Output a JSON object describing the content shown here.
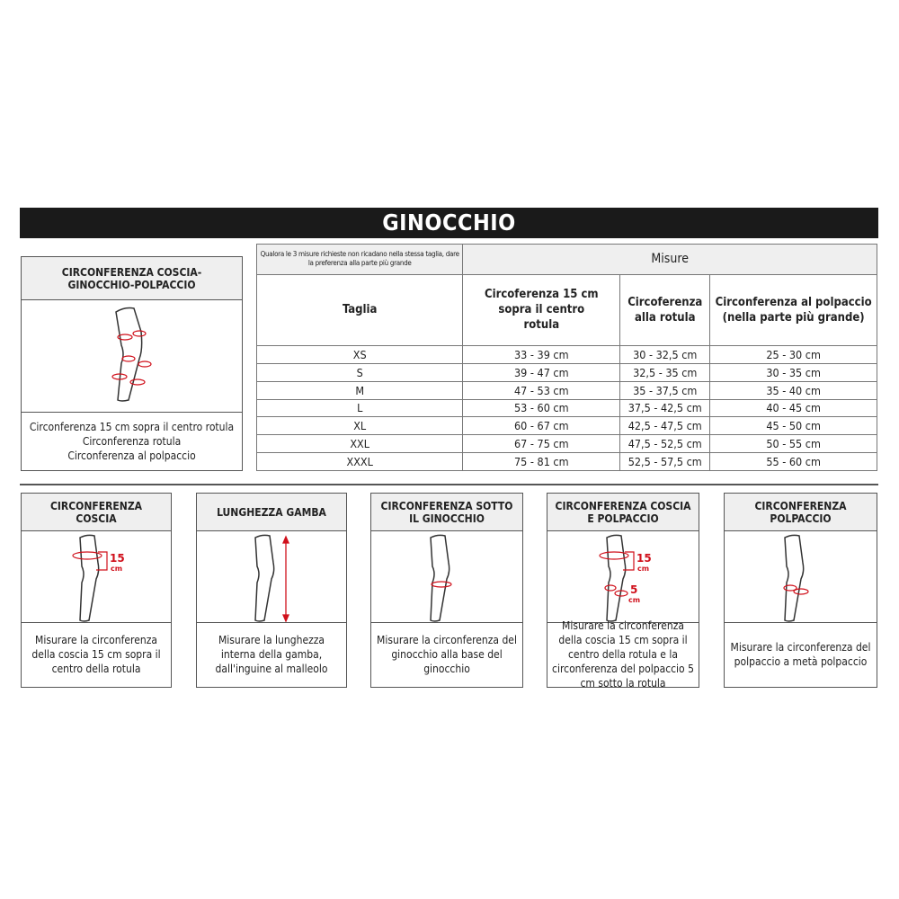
{
  "title": "GINOCCHIO",
  "overview_box": {
    "header": "CIRCONFERENZA COSCIA-GINOCCHIO-POLPACCIO",
    "lines": [
      "Circonferenza 15 cm sopra il centro rotula",
      "Circonferenza rotula",
      "Circonferenza al polpaccio"
    ]
  },
  "table": {
    "note": "Qualora le 3 misure richieste non ricadano nella stessa taglia, dare la preferenza alla parte più grande",
    "group_header": "Misure",
    "headers": [
      "Taglia",
      "Circoferenza 15 cm sopra il centro rotula",
      "Circoferenza alla rotula",
      "Circonferenza al polpaccio (nella parte più grande)"
    ],
    "rows": [
      [
        "XS",
        "33 - 39 cm",
        "30 - 32,5 cm",
        "25 - 30 cm"
      ],
      [
        "S",
        "39 - 47 cm",
        "32,5 - 35 cm",
        "30 - 35 cm"
      ],
      [
        "M",
        "47 - 53 cm",
        "35 - 37,5 cm",
        "35 - 40 cm"
      ],
      [
        "L",
        "53 - 60 cm",
        "37,5 - 42,5 cm",
        "40 - 45 cm"
      ],
      [
        "XL",
        "60 - 67 cm",
        "42,5 - 47,5 cm",
        "45 - 50 cm"
      ],
      [
        "XXL",
        "67 - 75 cm",
        "47,5 - 52,5 cm",
        "50 - 55 cm"
      ],
      [
        "XXXL",
        "75 - 81 cm",
        "52,5 - 57,5 cm",
        "55 - 60 cm"
      ]
    ]
  },
  "cards": [
    {
      "header": "CIRCONFERENZA COSCIA",
      "text": "Misurare la circonferenza della coscia 15 cm sopra il centro della rotula",
      "labels": [
        "15",
        "cm"
      ]
    },
    {
      "header": "LUNGHEZZA GAMBA",
      "text": "Misurare la lunghezza interna della gamba, dall'inguine al malleolo"
    },
    {
      "header": "CIRCONFERENZA SOTTO IL GINOCCHIO",
      "text": "Misurare la circonferenza del ginocchio alla base del ginocchio"
    },
    {
      "header": "CIRCONFERENZA COSCIA E POLPACCIO",
      "text": "Misurare la circonferenza della coscia 15 cm sopra il centro della rotula e la circonferenza del polpaccio 5 cm sotto la rotula",
      "labels": [
        "15",
        "cm",
        "5",
        "cm"
      ]
    },
    {
      "header": "CIRCONFERENZA POLPACCIO",
      "text": "Misurare la circonferenza del polpaccio a metà polpaccio"
    }
  ],
  "colors": {
    "accent": "#d0101b",
    "header_bg": "#efefef",
    "title_bg": "#1a1a1a"
  }
}
